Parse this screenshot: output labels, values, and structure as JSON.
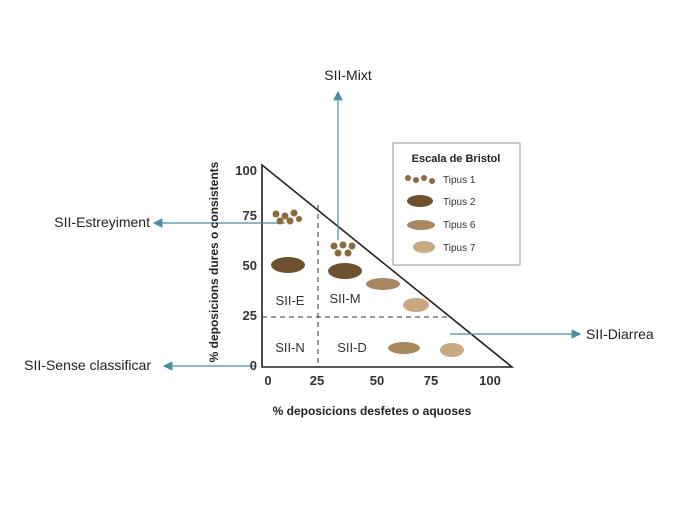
{
  "annotations": {
    "mixt": "SII-Mixt",
    "estreyiment": "SII-Estreyiment",
    "sense_classificar": "SII-Sense classificar",
    "diarrea": "SII-Diarrea"
  },
  "axes": {
    "y_title": "% deposicions dures o consistents",
    "x_title": "% deposicions desfetes o aquoses",
    "y_ticks": [
      "100",
      "75",
      "50",
      "25",
      "0"
    ],
    "x_ticks": [
      "0",
      "25",
      "50",
      "75",
      "100"
    ]
  },
  "regions": [
    "SII-E",
    "SII-M",
    "SII-N",
    "SII-D"
  ],
  "legend": {
    "title": "Escala de Bristol",
    "items": [
      "Tipus 1",
      "Tipus 2",
      "Tipus 6",
      "Tipus 7"
    ]
  }
}
